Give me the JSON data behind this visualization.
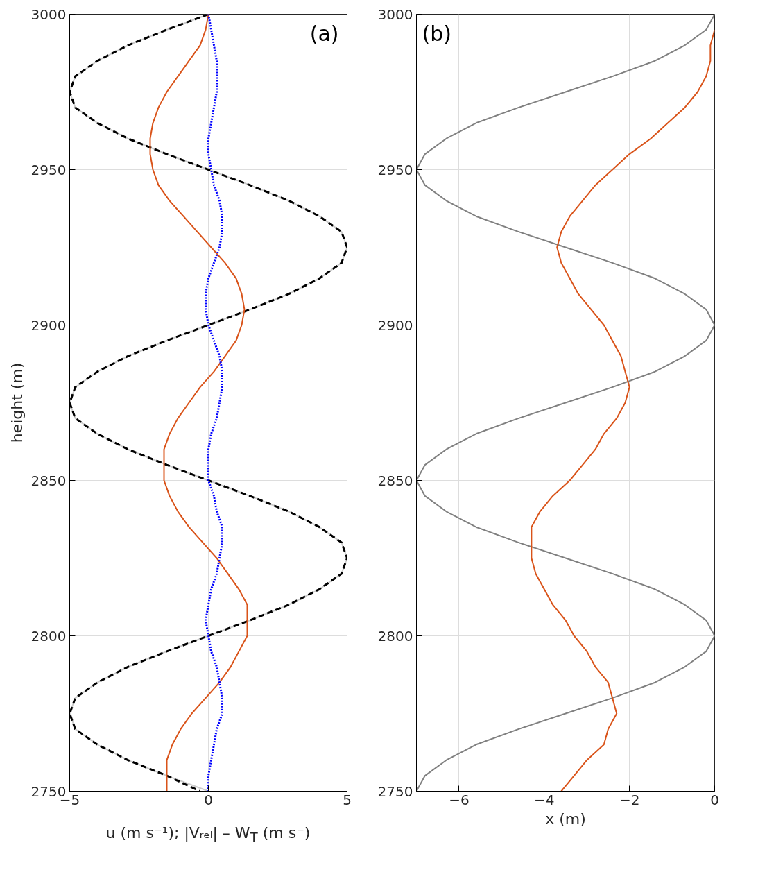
{
  "chart_data": [
    {
      "type": "line",
      "xlabel": "u (m s⁻¹); |Vᵣₑₗ| – W$_{T}$ (m s⁻)",
      "ylabel": "height (m)",
      "xlim": [
        -5,
        5
      ],
      "xticks": [
        -5,
        0,
        5
      ],
      "ylim": [
        2750,
        3000
      ],
      "yticks": [
        2750,
        2800,
        2850,
        2900,
        2950,
        3000
      ],
      "grid": true,
      "annotations": [
        "(a)"
      ],
      "series": [
        {
          "color": "#cccccc",
          "line_style": "solid",
          "x": [
            0,
            -1.5,
            -2.9,
            -4,
            -4.8,
            -5,
            -4.8,
            -4,
            -2.9,
            -1.5,
            0,
            1.5,
            2.9,
            4,
            4.8,
            5,
            4.8,
            4,
            2.9,
            1.5,
            0,
            -1.5,
            -2.9,
            -4,
            -4.8,
            -5,
            -4.8,
            -4,
            -2.9,
            -1.5,
            0,
            1.5,
            2.9,
            4,
            4.8,
            5,
            4.8,
            4,
            2.9,
            1.5,
            0,
            -1.5,
            -2.9,
            -4,
            -4.8,
            -5,
            -4.8,
            -4,
            -2.9,
            -1.5,
            0
          ],
          "values": [
            3000,
            2995,
            2990,
            2985,
            2980,
            2975,
            2970,
            2965,
            2960,
            2955,
            2950,
            2945,
            2940,
            2935,
            2930,
            2925,
            2920,
            2915,
            2910,
            2905,
            2900,
            2895,
            2890,
            2885,
            2880,
            2875,
            2870,
            2865,
            2860,
            2855,
            2850,
            2845,
            2840,
            2835,
            2830,
            2825,
            2820,
            2815,
            2810,
            2805,
            2800,
            2795,
            2790,
            2785,
            2780,
            2775,
            2770,
            2765,
            2760,
            2755,
            2750
          ]
        },
        {
          "color": "#000000",
          "line_style": "dashed",
          "x": [
            0,
            -1.5,
            -2.9,
            -4,
            -4.8,
            -5,
            -4.8,
            -4,
            -2.9,
            -1.5,
            0,
            1.5,
            2.9,
            4,
            4.8,
            5,
            4.8,
            4,
            2.9,
            1.5,
            0,
            -1.5,
            -2.9,
            -4,
            -4.8,
            -5,
            -4.8,
            -4,
            -2.9,
            -1.5,
            0,
            1.5,
            2.9,
            4,
            4.8,
            5,
            4.8,
            4,
            2.9,
            1.5,
            0,
            -1.5,
            -2.9,
            -4,
            -4.8,
            -5,
            -4.8,
            -4,
            -2.9,
            -1.5,
            -0.3
          ],
          "values": [
            3000,
            2995,
            2990,
            2985,
            2980,
            2975,
            2970,
            2965,
            2960,
            2955,
            2950,
            2945,
            2940,
            2935,
            2930,
            2925,
            2920,
            2915,
            2910,
            2905,
            2900,
            2895,
            2890,
            2885,
            2880,
            2875,
            2870,
            2865,
            2860,
            2855,
            2850,
            2845,
            2840,
            2835,
            2830,
            2825,
            2820,
            2815,
            2810,
            2805,
            2800,
            2795,
            2790,
            2785,
            2780,
            2775,
            2770,
            2765,
            2760,
            2755,
            2750
          ]
        },
        {
          "color": "#d95319",
          "line_style": "solid",
          "x": [
            0,
            -0.1,
            -0.3,
            -0.7,
            -1.1,
            -1.5,
            -1.8,
            -2,
            -2.1,
            -2.1,
            -2,
            -1.8,
            -1.4,
            -0.9,
            -0.4,
            0.1,
            0.6,
            1,
            1.2,
            1.3,
            1.2,
            1,
            0.6,
            0.2,
            -0.3,
            -0.7,
            -1.1,
            -1.4,
            -1.6,
            -1.6,
            -1.6,
            -1.4,
            -1.1,
            -0.7,
            -0.2,
            0.3,
            0.7,
            1.1,
            1.4,
            1.4,
            1.4,
            1.1,
            0.8,
            0.4,
            -0.1,
            -0.6,
            -1,
            -1.3,
            -1.5,
            -1.5,
            -1.5
          ],
          "values": [
            3000,
            2995,
            2990,
            2985,
            2980,
            2975,
            2970,
            2965,
            2960,
            2955,
            2950,
            2945,
            2940,
            2935,
            2930,
            2925,
            2920,
            2915,
            2910,
            2905,
            2900,
            2895,
            2890,
            2885,
            2880,
            2875,
            2870,
            2865,
            2860,
            2855,
            2850,
            2845,
            2840,
            2835,
            2830,
            2825,
            2820,
            2815,
            2810,
            2805,
            2800,
            2795,
            2790,
            2785,
            2780,
            2775,
            2770,
            2765,
            2760,
            2755,
            2750
          ]
        },
        {
          "color": "#0000ff",
          "line_style": "dotted",
          "x": [
            0,
            0.1,
            0.2,
            0.3,
            0.3,
            0.3,
            0.2,
            0.1,
            0,
            0,
            0.1,
            0.2,
            0.4,
            0.5,
            0.5,
            0.4,
            0.2,
            0,
            -0.1,
            -0.1,
            0,
            0.2,
            0.4,
            0.5,
            0.5,
            0.4,
            0.3,
            0.1,
            0,
            0,
            0,
            0.2,
            0.3,
            0.5,
            0.5,
            0.4,
            0.3,
            0.1,
            0,
            -0.1,
            0,
            0.1,
            0.3,
            0.4,
            0.5,
            0.5,
            0.3,
            0.2,
            0.1,
            0,
            0
          ],
          "values": [
            3000,
            2995,
            2990,
            2985,
            2980,
            2975,
            2970,
            2965,
            2960,
            2955,
            2950,
            2945,
            2940,
            2935,
            2930,
            2925,
            2920,
            2915,
            2910,
            2905,
            2900,
            2895,
            2890,
            2885,
            2880,
            2875,
            2870,
            2865,
            2860,
            2855,
            2850,
            2845,
            2840,
            2835,
            2830,
            2825,
            2820,
            2815,
            2810,
            2805,
            2800,
            2795,
            2790,
            2785,
            2780,
            2775,
            2770,
            2765,
            2760,
            2755,
            2750
          ]
        }
      ]
    },
    {
      "type": "line",
      "xlabel": "x (m)",
      "xlim": [
        -7,
        0
      ],
      "xticks": [
        -6,
        -4,
        -2,
        0
      ],
      "ylim": [
        2750,
        3000
      ],
      "yticks": [
        2750,
        2800,
        2850,
        2900,
        2950,
        3000
      ],
      "grid": true,
      "annotations": [
        "(b)"
      ],
      "series": [
        {
          "color": "#808080",
          "line_style": "solid",
          "x": [
            0,
            -0.2,
            -0.7,
            -1.4,
            -2.4,
            -3.5,
            -4.6,
            -5.6,
            -6.3,
            -6.8,
            -7,
            -6.8,
            -6.3,
            -5.6,
            -4.6,
            -3.5,
            -2.4,
            -1.4,
            -0.7,
            -0.2,
            0,
            -0.2,
            -0.7,
            -1.4,
            -2.4,
            -3.5,
            -4.6,
            -5.6,
            -6.3,
            -6.8,
            -7,
            -6.8,
            -6.3,
            -5.6,
            -4.6,
            -3.5,
            -2.4,
            -1.4,
            -0.7,
            -0.2,
            0,
            -0.2,
            -0.7,
            -1.4,
            -2.4,
            -3.5,
            -4.6,
            -5.6,
            -6.3,
            -6.8,
            -7
          ],
          "values": [
            3000,
            2995,
            2990,
            2985,
            2980,
            2975,
            2970,
            2965,
            2960,
            2955,
            2950,
            2945,
            2940,
            2935,
            2930,
            2925,
            2920,
            2915,
            2910,
            2905,
            2900,
            2895,
            2890,
            2885,
            2880,
            2875,
            2870,
            2865,
            2860,
            2855,
            2850,
            2845,
            2840,
            2835,
            2830,
            2825,
            2820,
            2815,
            2810,
            2805,
            2800,
            2795,
            2790,
            2785,
            2780,
            2775,
            2770,
            2765,
            2760,
            2755,
            2750
          ]
        },
        {
          "color": "#d95319",
          "line_style": "solid",
          "x": [
            0,
            -0.1,
            -0.1,
            -0.2,
            -0.4,
            -0.7,
            -1.1,
            -1.5,
            -2,
            -2.4,
            -2.8,
            -3.1,
            -3.4,
            -3.6,
            -3.7,
            -3.6,
            -3.4,
            -3.2,
            -2.9,
            -2.6,
            -2.4,
            -2.2,
            -2.1,
            -2,
            -2.1,
            -2.3,
            -2.6,
            -2.8,
            -3.1,
            -3.4,
            -3.8,
            -4.1,
            -4.3,
            -4.3,
            -4.3,
            -4.2,
            -4,
            -3.8,
            -3.5,
            -3.3,
            -3,
            -2.8,
            -2.5,
            -2.4,
            -2.3,
            -2.5,
            -2.6,
            -3,
            -3.3,
            -3.6
          ],
          "values": [
            2995,
            2990,
            2985,
            2980,
            2975,
            2970,
            2965,
            2960,
            2955,
            2950,
            2945,
            2940,
            2935,
            2930,
            2925,
            2920,
            2915,
            2910,
            2905,
            2900,
            2895,
            2890,
            2885,
            2880,
            2875,
            2870,
            2865,
            2860,
            2855,
            2850,
            2845,
            2840,
            2835,
            2830,
            2825,
            2820,
            2815,
            2810,
            2805,
            2800,
            2795,
            2790,
            2785,
            2780,
            2775,
            2770,
            2765,
            2760,
            2755,
            2750
          ]
        }
      ]
    }
  ]
}
